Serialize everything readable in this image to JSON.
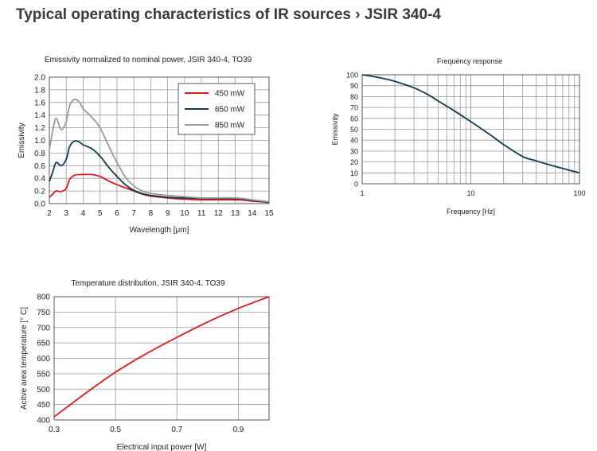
{
  "page": {
    "title": "Typical operating characteristics of IR sources › JSIR 340-4"
  },
  "chart_data": [
    {
      "id": "emissivity",
      "type": "line",
      "title": "Emissivity normalized to nominal power, JSIR 340-4, TO39",
      "xlabel": "Wavelength [μm]",
      "ylabel": "Emissivity",
      "xlim": [
        2,
        15
      ],
      "ylim": [
        0,
        2
      ],
      "xticks": [
        2,
        3,
        4,
        5,
        6,
        7,
        8,
        9,
        10,
        11,
        12,
        13,
        14,
        15
      ],
      "yticks": [
        "0.0",
        "0.2",
        "0.4",
        "0.6",
        "0.8",
        "1.0",
        "1.2",
        "1.4",
        "1.6",
        "1.8",
        "2.0"
      ],
      "grid": true,
      "legend": "top-right",
      "series": [
        {
          "name": "450 mW",
          "color": "#e0191c",
          "x": [
            2,
            2.2,
            2.4,
            2.7,
            3,
            3.2,
            3.5,
            4,
            4.5,
            5,
            5.5,
            6,
            6.5,
            7,
            7.5,
            8,
            9,
            10,
            11,
            12,
            13,
            13.5,
            14,
            15
          ],
          "y": [
            0.1,
            0.15,
            0.2,
            0.19,
            0.24,
            0.38,
            0.45,
            0.46,
            0.46,
            0.43,
            0.36,
            0.3,
            0.25,
            0.2,
            0.15,
            0.12,
            0.09,
            0.07,
            0.06,
            0.06,
            0.06,
            0.055,
            0.04,
            0.02
          ]
        },
        {
          "name": "650 mW",
          "color": "#103a52",
          "x": [
            2,
            2.2,
            2.4,
            2.7,
            3,
            3.2,
            3.5,
            3.8,
            4,
            4.5,
            5,
            5.5,
            6,
            6.5,
            7,
            7.5,
            8,
            9,
            10,
            11,
            12,
            13,
            13.5,
            14,
            15
          ],
          "y": [
            0.35,
            0.5,
            0.65,
            0.6,
            0.7,
            0.9,
            0.99,
            0.97,
            0.93,
            0.87,
            0.75,
            0.58,
            0.43,
            0.3,
            0.21,
            0.16,
            0.13,
            0.1,
            0.09,
            0.08,
            0.08,
            0.08,
            0.07,
            0.05,
            0.02
          ]
        },
        {
          "name": "850 mW",
          "color": "#9a9a9a",
          "x": [
            2,
            2.2,
            2.4,
            2.7,
            3,
            3.2,
            3.5,
            3.8,
            4,
            4.5,
            5,
            5.5,
            6,
            6.5,
            7,
            7.5,
            8,
            9,
            10,
            11,
            12,
            13,
            13.5,
            14,
            15
          ],
          "y": [
            0.85,
            1.15,
            1.35,
            1.17,
            1.3,
            1.55,
            1.65,
            1.6,
            1.5,
            1.37,
            1.2,
            0.92,
            0.65,
            0.42,
            0.28,
            0.2,
            0.16,
            0.13,
            0.11,
            0.09,
            0.09,
            0.09,
            0.08,
            0.06,
            0.03
          ]
        }
      ]
    },
    {
      "id": "frequency",
      "type": "line",
      "title": "Frequency response",
      "xlabel": "Frequency [Hz]",
      "ylabel": "Emissivity",
      "xscale": "log",
      "xlim": [
        1,
        100
      ],
      "ylim": [
        0,
        100
      ],
      "xticks": [
        1,
        10,
        100
      ],
      "yticks": [
        0,
        10,
        20,
        30,
        40,
        50,
        60,
        70,
        80,
        90,
        100
      ],
      "grid": true,
      "series": [
        {
          "color": "#103a52",
          "x": [
            1,
            1.5,
            2,
            3,
            4,
            5,
            7,
            10,
            15,
            20,
            30,
            40,
            50,
            70,
            100
          ],
          "y": [
            100,
            97,
            94,
            88,
            82,
            76,
            67,
            57,
            45,
            36,
            25,
            21,
            18,
            14,
            10
          ]
        }
      ]
    },
    {
      "id": "temperature",
      "type": "line",
      "title": "Temperature distribution, JSIR 340-4, TO39",
      "xlabel": "Electrical input power [W]",
      "ylabel": "Acitve area temperature [° C]",
      "xlim": [
        0.3,
        1.0
      ],
      "ylim": [
        400,
        800
      ],
      "xticks": [
        "0.3",
        "0.5",
        "0.7",
        "0.9"
      ],
      "yticks": [
        400,
        450,
        500,
        550,
        600,
        650,
        700,
        750,
        800
      ],
      "grid": true,
      "series": [
        {
          "color": "#e0191c",
          "x": [
            0.3,
            0.4,
            0.5,
            0.6,
            0.7,
            0.8,
            0.9,
            1.0
          ],
          "y": [
            410,
            485,
            555,
            615,
            668,
            718,
            762,
            800
          ]
        }
      ]
    }
  ]
}
